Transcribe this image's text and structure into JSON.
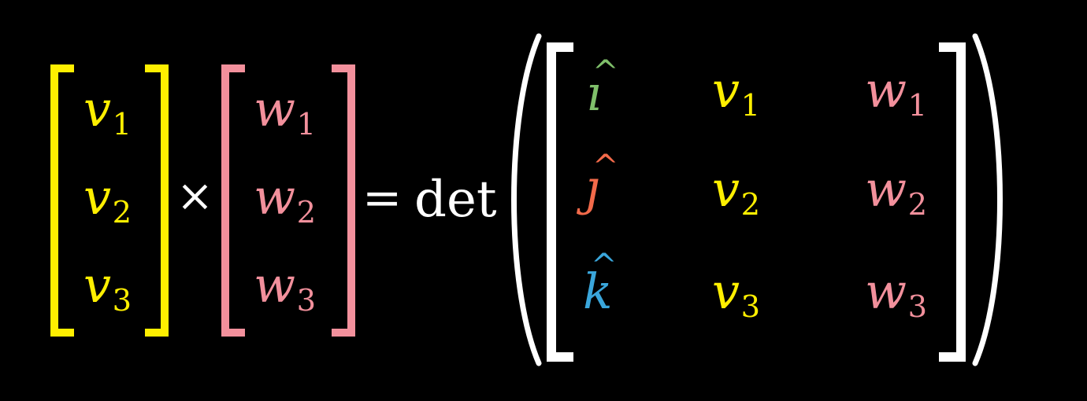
{
  "colors": {
    "background": "#000000",
    "v": "#ffef00",
    "w": "#f2909c",
    "i_hat": "#7fbf6a",
    "j_hat": "#f26a4a",
    "k_hat": "#3aa6db",
    "operators": "#ffffff"
  },
  "vector_v": {
    "entries": [
      {
        "letter": "v",
        "sub": "1"
      },
      {
        "letter": "v",
        "sub": "2"
      },
      {
        "letter": "v",
        "sub": "3"
      }
    ]
  },
  "vector_w": {
    "entries": [
      {
        "letter": "w",
        "sub": "1"
      },
      {
        "letter": "w",
        "sub": "2"
      },
      {
        "letter": "w",
        "sub": "3"
      }
    ]
  },
  "operators": {
    "cross": "×",
    "equals": "=",
    "det": "det"
  },
  "matrix": {
    "basis": [
      {
        "letter": "ı",
        "hat": "^"
      },
      {
        "letter": "ȷ",
        "hat": "^"
      },
      {
        "letter": "k",
        "hat": "^"
      }
    ],
    "v_column": [
      {
        "letter": "v",
        "sub": "1"
      },
      {
        "letter": "v",
        "sub": "2"
      },
      {
        "letter": "v",
        "sub": "3"
      }
    ],
    "w_column": [
      {
        "letter": "w",
        "sub": "1"
      },
      {
        "letter": "w",
        "sub": "2"
      },
      {
        "letter": "w",
        "sub": "3"
      }
    ]
  }
}
